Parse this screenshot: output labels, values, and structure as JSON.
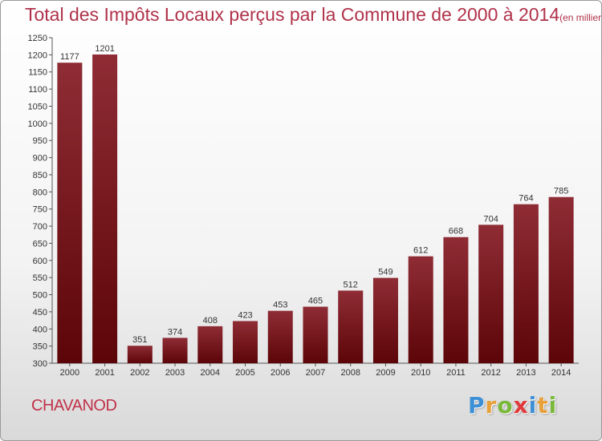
{
  "header": {
    "title": "Total des Impôts Locaux perçus par la Commune de 2000 à 2014",
    "unit": "(en milliers d'€)"
  },
  "footer": {
    "commune": "CHAVANOD",
    "logo_letters": [
      {
        "char": "P",
        "color": "#3d8fd6"
      },
      {
        "char": "r",
        "color": "#e8a03a"
      },
      {
        "char": "o",
        "color": "#7ab83a"
      },
      {
        "char": "x",
        "color": "#e03a3a"
      },
      {
        "char": "i",
        "color": "#3d8fd6"
      },
      {
        "char": "t",
        "color": "#e8a03a"
      },
      {
        "char": "i",
        "color": "#7ab83a"
      }
    ]
  },
  "chart_data": {
    "type": "bar",
    "title": "Total des Impôts Locaux perçus par la Commune de 2000 à 2014",
    "xlabel": "",
    "ylabel": "",
    "categories": [
      "2000",
      "2001",
      "2002",
      "2003",
      "2004",
      "2005",
      "2006",
      "2007",
      "2008",
      "2009",
      "2010",
      "2011",
      "2012",
      "2013",
      "2014"
    ],
    "values": [
      1177,
      1201,
      351,
      374,
      408,
      423,
      453,
      465,
      512,
      549,
      612,
      668,
      704,
      764,
      785
    ],
    "ylim": [
      300,
      1250
    ],
    "yticks": [
      300,
      350,
      400,
      450,
      500,
      550,
      600,
      650,
      700,
      750,
      800,
      850,
      900,
      950,
      1000,
      1050,
      1100,
      1150,
      1200,
      1250
    ],
    "grid": false,
    "bar_color": "#7a1420"
  }
}
